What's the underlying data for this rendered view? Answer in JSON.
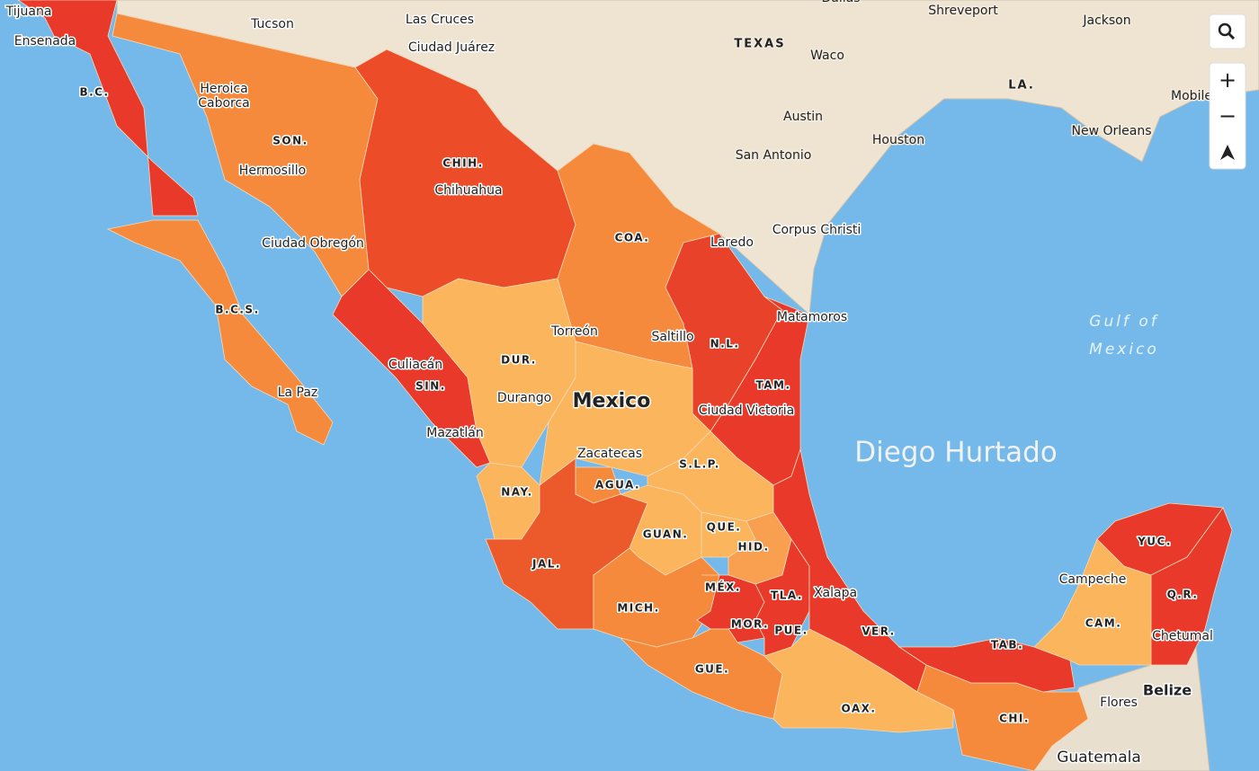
{
  "map": {
    "country_label": "Mexico",
    "water_label": [
      "Gulf of",
      "Mexico"
    ],
    "watermark": "Diego Hurtado",
    "states": [
      "B.C.",
      "SON.",
      "CHIH.",
      "COA.",
      "B.C.S.",
      "DUR.",
      "SIN.",
      "N.L.",
      "TAM.",
      "S.L.P.",
      "NAY.",
      "AGUA.",
      "GUAN.",
      "QUE.",
      "HID.",
      "JAL.",
      "MÉX.",
      "TLA.",
      "MICH.",
      "MOR.",
      "PUE.",
      "VER.",
      "TAB.",
      "GUE.",
      "OAX.",
      "CHI.",
      "YUC.",
      "Q.R.",
      "CAM."
    ],
    "cities": [
      "Tijuana",
      "Ensenada",
      "Tucson",
      "Las Cruces",
      "Ciudad Juárez",
      "Heroica",
      "Caborca",
      "Hermosillo",
      "Chihuahua",
      "Ciudad Obregón",
      "Torreón",
      "Saltillo",
      "Culiacán",
      "Durango",
      "La Paz",
      "Mazatlán",
      "Zacatecas",
      "Ciudad Victoria",
      "Laredo",
      "Corpus Christi",
      "Matamoros",
      "Campeche",
      "Chetumal",
      "Xalapa",
      "Flores",
      "Dallas",
      "Shreveport",
      "Jackson",
      "Waco",
      "Austin",
      "Mobile",
      "Houston",
      "New Orleans",
      "San Antonio"
    ],
    "regions": [
      "TEXAS",
      "LA.",
      "Belize",
      "Guatemala"
    ],
    "controls": {
      "zoom_in": "+",
      "zoom_out": "−"
    }
  }
}
